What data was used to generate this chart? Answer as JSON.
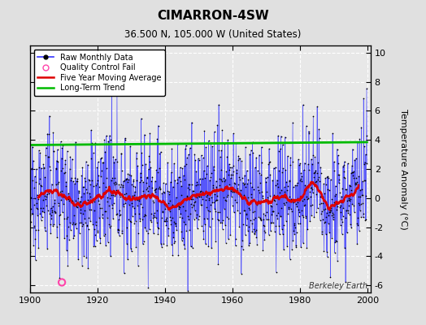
{
  "title": "CIMARRON-4SW",
  "subtitle": "36.500 N, 105.000 W (United States)",
  "ylabel": "Temperature Anomaly (°C)",
  "xlabel_credit": "Berkeley Earth",
  "x_start": 1900,
  "x_end": 2001,
  "ylim": [
    -6.5,
    10.5
  ],
  "yticks": [
    -6,
    -4,
    -2,
    0,
    2,
    4,
    6,
    8,
    10
  ],
  "xticks": [
    1900,
    1920,
    1940,
    1960,
    1980,
    2000
  ],
  "raw_color": "#3333ff",
  "dot_color": "#000000",
  "moving_avg_color": "#dd0000",
  "trend_color": "#00bb00",
  "qc_fail_color": "#ff44aa",
  "background_color": "#e0e0e0",
  "plot_bg_color": "#e8e8e8",
  "grid_color": "#ffffff",
  "legend_labels": [
    "Raw Monthly Data",
    "Quality Control Fail",
    "Five Year Moving Average",
    "Long-Term Trend"
  ],
  "seed": 12345
}
